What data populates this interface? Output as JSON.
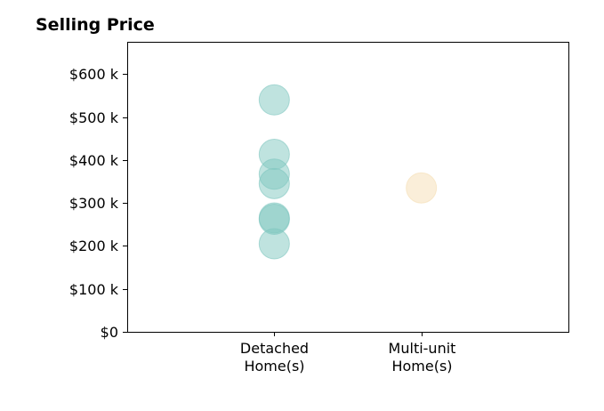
{
  "chart_data": {
    "type": "scatter",
    "title": "Selling Price",
    "xlabel": "",
    "ylabel": "",
    "categories": [
      "Detached\nHome(s)",
      "Multi-unit\nHome(s)"
    ],
    "xlim": [
      -1,
      2
    ],
    "ylim": [
      0,
      675000
    ],
    "yticks": [
      0,
      100000,
      200000,
      300000,
      400000,
      500000,
      600000
    ],
    "ytick_labels": [
      "$0",
      "$100 k",
      "$200 k",
      "$300 k",
      "$400 k",
      "$500 k",
      "$600 k"
    ],
    "grid": false,
    "series": [
      {
        "category": "Detached\nHome(s)",
        "color": "#7fc7c0",
        "values": [
          540000,
          413000,
          367000,
          345000,
          265000,
          262000,
          205000
        ]
      },
      {
        "category": "Multi-unit\nHome(s)",
        "color": "#f5deb3",
        "values": [
          335000
        ]
      }
    ]
  }
}
